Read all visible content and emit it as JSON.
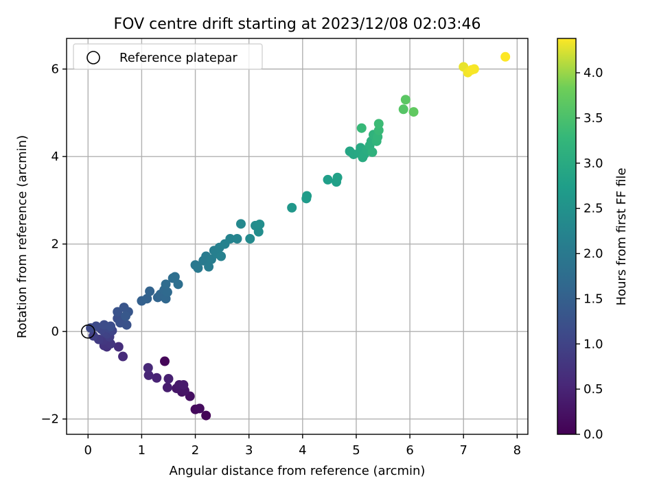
{
  "chart_data": {
    "type": "scatter",
    "title": "FOV centre drift starting at 2023/12/08 02:03:46",
    "xlabel": "Angular distance from reference (arcmin)",
    "ylabel": "Rotation from reference (arcmin)",
    "xlim": [
      -0.4,
      8.2
    ],
    "ylim": [
      -2.35,
      6.7
    ],
    "xticks": [
      0,
      1,
      2,
      3,
      4,
      5,
      6,
      7,
      8
    ],
    "yticks": [
      -2,
      0,
      2,
      4,
      6
    ],
    "xtick_labels": [
      "0",
      "1",
      "2",
      "3",
      "4",
      "5",
      "6",
      "7",
      "8"
    ],
    "ytick_labels": [
      "−2",
      "0",
      "2",
      "4",
      "6"
    ],
    "grid": true,
    "legend": {
      "location": "upper-left",
      "entries": [
        {
          "label": "Reference platepar",
          "marker": "open-circle",
          "x": 0,
          "y": 0
        }
      ]
    },
    "colorbar": {
      "label": "Hours from first FF file",
      "colormap": "viridis",
      "range": [
        0.0,
        4.38
      ],
      "ticks": [
        0.0,
        0.5,
        1.0,
        1.5,
        2.0,
        2.5,
        3.0,
        3.5,
        4.0
      ],
      "tick_labels": [
        "0.0",
        "0.5",
        "1.0",
        "1.5",
        "2.0",
        "2.5",
        "3.0",
        "3.5",
        "4.0"
      ]
    },
    "series": [
      {
        "fields": [
          "x",
          "y",
          "hours"
        ],
        "points": [
          [
            2.2,
            -1.92,
            0.05
          ],
          [
            1.43,
            -0.68,
            0.08
          ],
          [
            2.0,
            -1.78,
            0.12
          ],
          [
            2.08,
            -1.76,
            0.15
          ],
          [
            1.9,
            -1.48,
            0.2
          ],
          [
            1.75,
            -1.38,
            0.24
          ],
          [
            1.8,
            -1.35,
            0.28
          ],
          [
            1.65,
            -1.3,
            0.3
          ],
          [
            1.7,
            -1.22,
            0.33
          ],
          [
            1.78,
            -1.22,
            0.36
          ],
          [
            1.48,
            -1.28,
            0.4
          ],
          [
            1.5,
            -1.08,
            0.44
          ],
          [
            1.28,
            -1.06,
            0.48
          ],
          [
            1.13,
            -1.0,
            0.52
          ],
          [
            1.12,
            -0.83,
            0.56
          ],
          [
            0.65,
            -0.57,
            0.6
          ],
          [
            0.57,
            -0.35,
            0.65
          ],
          [
            0.35,
            -0.35,
            0.7
          ],
          [
            0.3,
            -0.32,
            0.75
          ],
          [
            0.42,
            -0.28,
            0.78
          ],
          [
            0.28,
            -0.2,
            0.82
          ],
          [
            0.2,
            -0.18,
            0.86
          ],
          [
            0.4,
            -0.12,
            0.9
          ],
          [
            0.1,
            -0.1,
            0.94
          ],
          [
            0.35,
            -0.05,
            0.98
          ],
          [
            0.3,
            0.0,
            1.0
          ],
          [
            0.45,
            0.02,
            1.02
          ],
          [
            0.25,
            0.05,
            1.05
          ],
          [
            0.38,
            0.08,
            1.07
          ],
          [
            0.05,
            0.08,
            1.1
          ],
          [
            0.15,
            0.12,
            1.12
          ],
          [
            0.3,
            0.15,
            1.14
          ],
          [
            0.42,
            0.12,
            1.17
          ],
          [
            0.55,
            0.3,
            1.2
          ],
          [
            0.6,
            0.2,
            1.23
          ],
          [
            0.72,
            0.15,
            1.25
          ],
          [
            0.55,
            0.45,
            1.28
          ],
          [
            0.67,
            0.55,
            1.3
          ],
          [
            0.75,
            0.45,
            1.33
          ],
          [
            0.7,
            0.35,
            1.36
          ],
          [
            1.0,
            0.7,
            1.5
          ],
          [
            1.1,
            0.75,
            1.53
          ],
          [
            1.15,
            0.92,
            1.56
          ],
          [
            1.3,
            0.78,
            1.59
          ],
          [
            1.35,
            0.85,
            1.62
          ],
          [
            1.45,
            0.75,
            1.64
          ],
          [
            1.42,
            0.95,
            1.66
          ],
          [
            1.48,
            0.9,
            1.69
          ],
          [
            1.45,
            1.08,
            1.72
          ],
          [
            1.58,
            1.22,
            1.75
          ],
          [
            1.62,
            1.25,
            1.78
          ],
          [
            1.68,
            1.08,
            1.8
          ],
          [
            2.0,
            1.52,
            1.98
          ],
          [
            2.05,
            1.45,
            2.0
          ],
          [
            2.15,
            1.62,
            2.02
          ],
          [
            2.2,
            1.72,
            2.04
          ],
          [
            2.25,
            1.48,
            2.06
          ],
          [
            2.3,
            1.65,
            2.08
          ],
          [
            2.35,
            1.85,
            2.1
          ],
          [
            2.4,
            1.78,
            2.12
          ],
          [
            2.45,
            1.92,
            2.14
          ],
          [
            2.48,
            1.72,
            2.16
          ],
          [
            2.55,
            2.0,
            2.18
          ],
          [
            2.65,
            2.12,
            2.2
          ],
          [
            2.78,
            2.12,
            2.22
          ],
          [
            2.85,
            2.46,
            2.3
          ],
          [
            3.02,
            2.12,
            2.35
          ],
          [
            3.12,
            2.42,
            2.38
          ],
          [
            3.18,
            2.28,
            2.4
          ],
          [
            3.2,
            2.45,
            2.42
          ],
          [
            3.8,
            2.83,
            2.6
          ],
          [
            4.07,
            3.04,
            2.68
          ],
          [
            4.08,
            3.1,
            2.7
          ],
          [
            4.47,
            3.47,
            2.75
          ],
          [
            4.63,
            3.42,
            2.78
          ],
          [
            4.65,
            3.52,
            2.8
          ],
          [
            4.88,
            4.12,
            2.9
          ],
          [
            4.95,
            4.05,
            2.93
          ],
          [
            5.05,
            4.08,
            2.95
          ],
          [
            5.08,
            4.2,
            2.98
          ],
          [
            5.12,
            3.98,
            3.0
          ],
          [
            5.15,
            4.05,
            3.02
          ],
          [
            5.2,
            4.15,
            3.05
          ],
          [
            5.25,
            4.25,
            3.1
          ],
          [
            5.28,
            4.35,
            3.12
          ],
          [
            5.3,
            4.1,
            3.15
          ],
          [
            5.32,
            4.5,
            3.18
          ],
          [
            5.38,
            4.35,
            3.22
          ],
          [
            5.4,
            4.45,
            3.25
          ],
          [
            5.1,
            4.65,
            3.3
          ],
          [
            5.42,
            4.6,
            3.32
          ],
          [
            5.42,
            4.75,
            3.35
          ],
          [
            5.88,
            5.08,
            3.6
          ],
          [
            5.92,
            5.3,
            3.65
          ],
          [
            6.07,
            5.02,
            3.7
          ],
          [
            7.0,
            6.05,
            4.3
          ],
          [
            7.1,
            5.95,
            4.32
          ],
          [
            7.08,
            5.92,
            4.34
          ],
          [
            7.2,
            6.0,
            4.35
          ],
          [
            7.15,
            5.98,
            4.36
          ],
          [
            7.78,
            6.28,
            4.38
          ]
        ]
      }
    ]
  }
}
